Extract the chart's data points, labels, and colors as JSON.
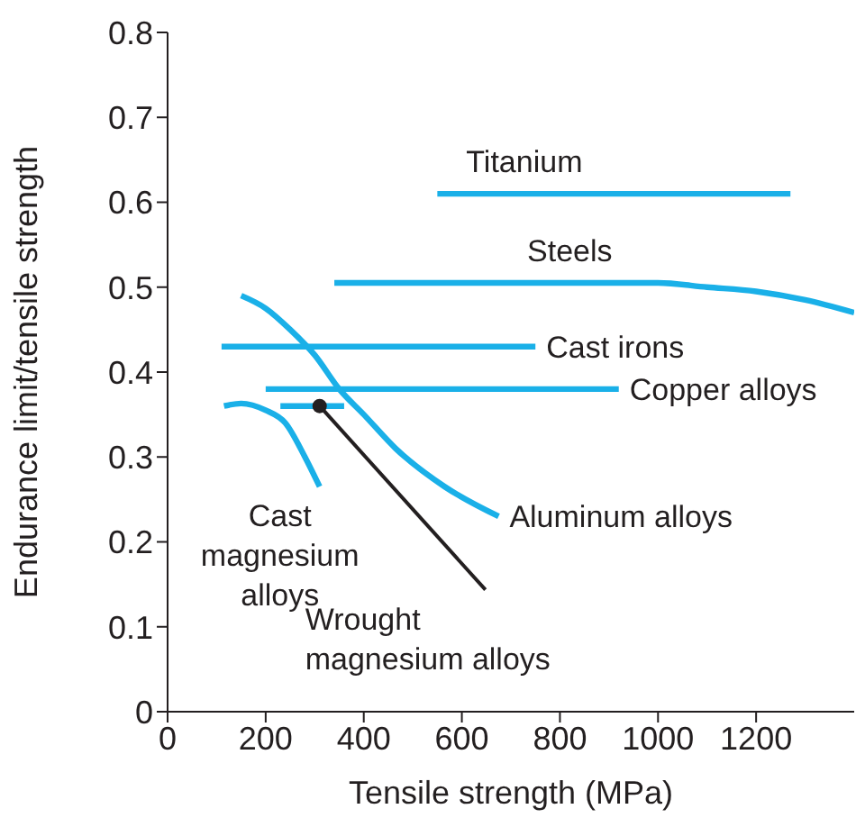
{
  "chart_data": {
    "type": "line",
    "xlabel": "Tensile strength (MPa)",
    "ylabel": "Endurance limit/tensile strength",
    "xlim": [
      0,
      1400
    ],
    "xticks": [
      0,
      200,
      400,
      600,
      800,
      1000,
      1200
    ],
    "ylim": [
      0,
      0.8
    ],
    "yticks": [
      0,
      0.1,
      0.2,
      0.3,
      0.4,
      0.5,
      0.6,
      0.7,
      0.8
    ],
    "grid": false,
    "legend": false,
    "marker": "none",
    "line_style": "solid",
    "series": [
      {
        "name": "Titanium",
        "color": "#1ab0e8",
        "x": [
          550,
          1270
        ],
        "values": [
          0.61,
          0.61
        ]
      },
      {
        "name": "Steels",
        "color": "#1ab0e8",
        "x": [
          340,
          1000,
          1100,
          1200,
          1300,
          1400
        ],
        "values": [
          0.505,
          0.505,
          0.5,
          0.495,
          0.485,
          0.47
        ]
      },
      {
        "name": "Cast irons",
        "color": "#1ab0e8",
        "x": [
          110,
          750
        ],
        "values": [
          0.43,
          0.43
        ]
      },
      {
        "name": "Copper alloys",
        "color": "#1ab0e8",
        "x": [
          200,
          920
        ],
        "values": [
          0.38,
          0.38
        ]
      },
      {
        "name": "Aluminum alloys",
        "color": "#1ab0e8",
        "x": [
          150,
          200,
          250,
          300,
          350,
          400,
          465,
          565,
          675
        ],
        "values": [
          0.49,
          0.475,
          0.45,
          0.42,
          0.38,
          0.35,
          0.31,
          0.265,
          0.23
        ]
      },
      {
        "name": "Cast magnesium alloys",
        "color": "#1ab0e8",
        "x": [
          115,
          150,
          200,
          240,
          280,
          310
        ],
        "values": [
          0.36,
          0.363,
          0.355,
          0.34,
          0.3,
          0.265
        ]
      },
      {
        "name": "Wrought magnesium alloys",
        "color": "#1ab0e8",
        "x": [
          230,
          310,
          360
        ],
        "values": [
          0.36,
          0.36,
          0.36
        ]
      }
    ]
  }
}
